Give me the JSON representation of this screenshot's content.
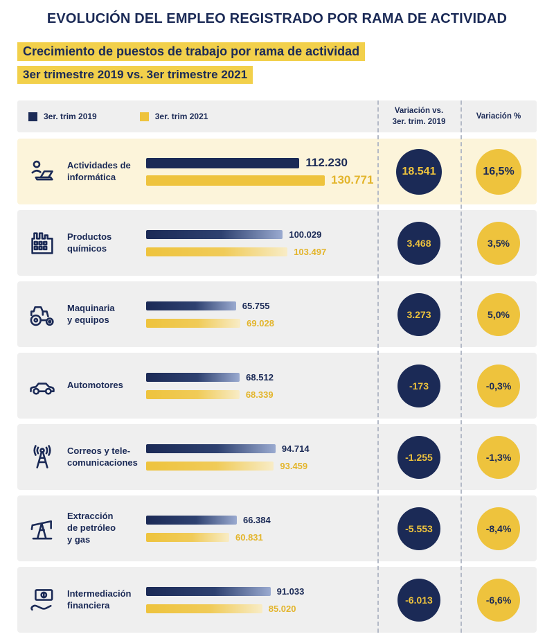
{
  "page": {
    "title": "EVOLUCIÓN DEL EMPLEO REGISTRADO POR RAMA DE ACTIVIDAD",
    "subtitle_line1": "Crecimiento de puestos de trabajo por rama de actividad",
    "subtitle_line2": "3er trimestre 2019 vs. 3er trimestre 2021"
  },
  "legend": {
    "items": [
      {
        "label": "3er. trim 2019",
        "color": "#1b2a56"
      },
      {
        "label": "3er. trim 2021",
        "color": "#eec33d"
      }
    ]
  },
  "columns": {
    "variation_abs": "Variación vs. 3er. trim. 2019",
    "variation_abs_line1": "Variación vs.",
    "variation_abs_line2": "3er. trim. 2019",
    "variation_pct": "Variación %"
  },
  "colors": {
    "navy": "#1b2a56",
    "gold": "#eec33d",
    "row_background": "#efefef",
    "highlight_row_background": "#fcf4da",
    "subtitle_highlight": "#f2d04b"
  },
  "chart_data": {
    "type": "bar",
    "orientation": "horizontal",
    "title": "Crecimiento de puestos de trabajo por rama de actividad",
    "subtitle": "3er trimestre 2019 vs. 3er trimestre 2021",
    "series_names": [
      "3er. trim 2019",
      "3er. trim 2021"
    ],
    "value_axis_max": 130771,
    "legend_position": "top-left",
    "grid": false,
    "rows": [
      {
        "label": "Actividades de informática",
        "label_lines": [
          "Actividades de",
          "informática"
        ],
        "icon": "computer-user-icon",
        "value_2019": 112230,
        "value_2021": 130771,
        "label_2019": "112.230",
        "label_2021": "130.771",
        "variation_abs": "18.541",
        "variation_pct": "16,5%",
        "highlight": true
      },
      {
        "label": "Productos químicos",
        "label_lines": [
          "Productos",
          "químicos"
        ],
        "icon": "factory-icon",
        "value_2019": 100029,
        "value_2021": 103497,
        "label_2019": "100.029",
        "label_2021": "103.497",
        "variation_abs": "3.468",
        "variation_pct": "3,5%",
        "highlight": false
      },
      {
        "label": "Maquinaria y equipos",
        "label_lines": [
          "Maquinaria",
          "y equipos"
        ],
        "icon": "tractor-icon",
        "value_2019": 65755,
        "value_2021": 69028,
        "label_2019": "65.755",
        "label_2021": "69.028",
        "variation_abs": "3.273",
        "variation_pct": "5,0%",
        "highlight": false
      },
      {
        "label": "Automotores",
        "label_lines": [
          "Automotores"
        ],
        "icon": "car-icon",
        "value_2019": 68512,
        "value_2021": 68339,
        "label_2019": "68.512",
        "label_2021": "68.339",
        "variation_abs": "-173",
        "variation_pct": "-0,3%",
        "highlight": false
      },
      {
        "label": "Correos y tele-comunicaciones",
        "label_lines": [
          "Correos y tele-",
          "comunicaciones"
        ],
        "icon": "antenna-icon",
        "value_2019": 94714,
        "value_2021": 93459,
        "label_2019": "94.714",
        "label_2021": "93.459",
        "variation_abs": "-1.255",
        "variation_pct": "-1,3%",
        "highlight": false
      },
      {
        "label": "Extracción de petróleo y gas",
        "label_lines": [
          "Extracción",
          "de petróleo",
          "y gas"
        ],
        "icon": "oil-pump-icon",
        "value_2019": 66384,
        "value_2021": 60831,
        "label_2019": "66.384",
        "label_2021": "60.831",
        "variation_abs": "-5.553",
        "variation_pct": "-8,4%",
        "highlight": false
      },
      {
        "label": "Intermediación financiera",
        "label_lines": [
          "Intermediación",
          "financiera"
        ],
        "icon": "money-hand-icon",
        "value_2019": 91033,
        "value_2021": 85020,
        "label_2019": "91.033",
        "label_2021": "85.020",
        "variation_abs": "-6.013",
        "variation_pct": "-6,6%",
        "highlight": false
      }
    ]
  }
}
